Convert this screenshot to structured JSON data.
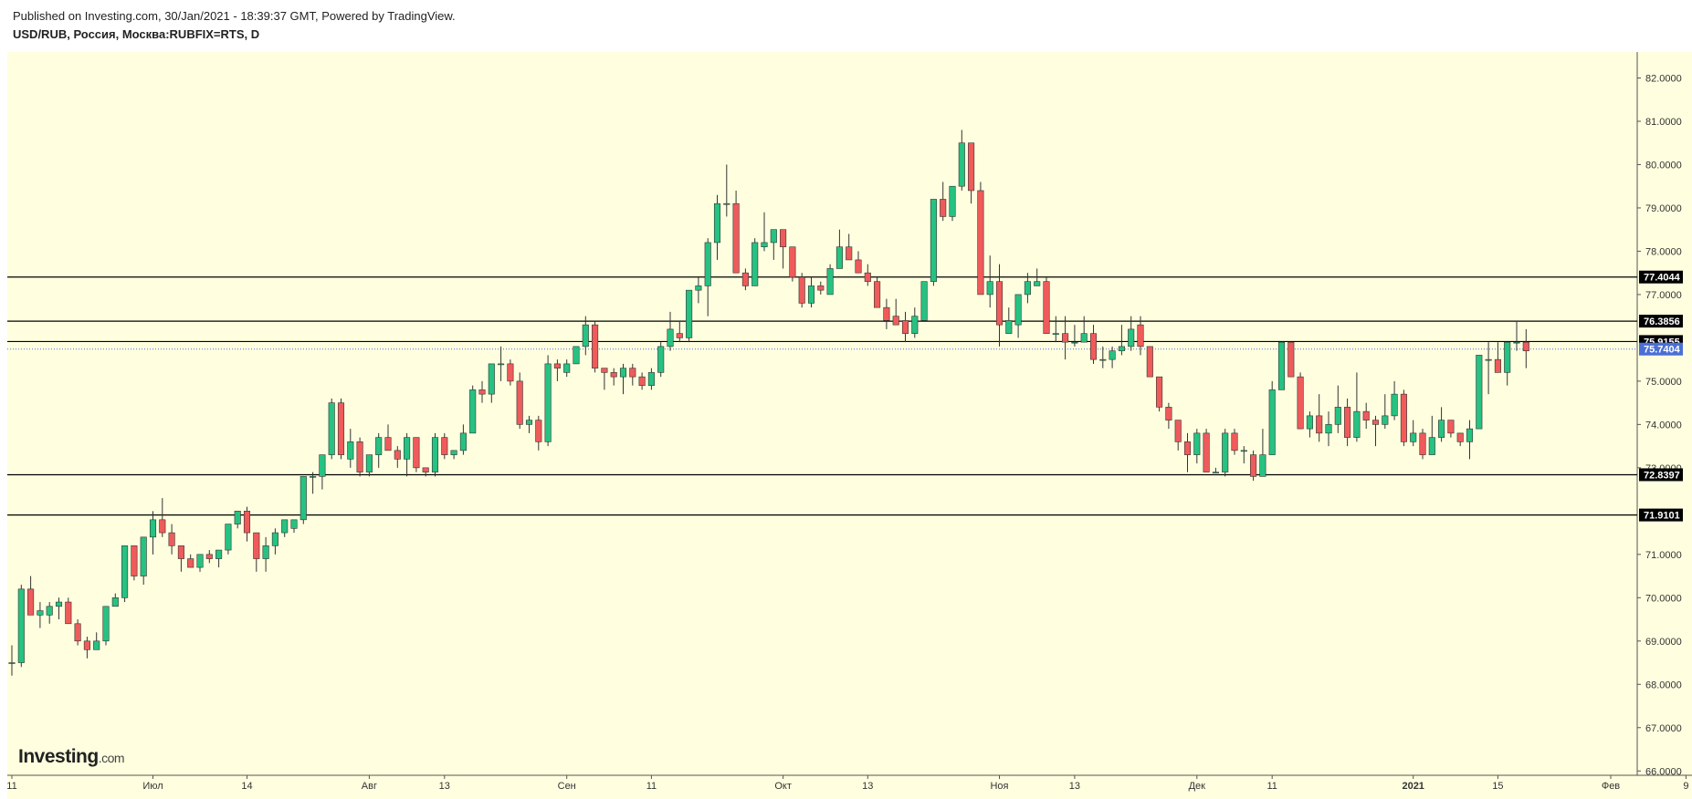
{
  "header": {
    "published": "Published on Investing.com, 30/Jan/2021 - 18:39:37 GMT, Powered by TradingView.",
    "symbol": "USD/RUB, Россия, Москва:RUBFIX=RTS, D"
  },
  "logo": {
    "main": "Investing",
    "suffix": ".com"
  },
  "colors": {
    "background": "#ffffe0",
    "up": "#26c281",
    "down": "#ef5b5b",
    "wick": "#333333",
    "hline": "#000000",
    "current": "#4a6fd6"
  },
  "chart_data": {
    "type": "candlestick",
    "ylim": [
      65.9,
      82.6
    ],
    "y_ticks": [
      "82.0000",
      "81.0000",
      "80.0000",
      "79.0000",
      "78.0000",
      "77.0000",
      "75.0000",
      "74.0000",
      "73.0000",
      "71.0000",
      "70.0000",
      "69.0000",
      "68.0000",
      "67.0000",
      "66.0000"
    ],
    "x_ticks": [
      {
        "i": 0,
        "label": "11"
      },
      {
        "i": 15,
        "label": "Июл"
      },
      {
        "i": 25,
        "label": "14"
      },
      {
        "i": 38,
        "label": "Авг"
      },
      {
        "i": 46,
        "label": "13"
      },
      {
        "i": 59,
        "label": "Сен"
      },
      {
        "i": 68,
        "label": "11"
      },
      {
        "i": 82,
        "label": "Окт"
      },
      {
        "i": 91,
        "label": "13"
      },
      {
        "i": 105,
        "label": "Ноя"
      },
      {
        "i": 113,
        "label": "13"
      },
      {
        "i": 126,
        "label": "Дек"
      },
      {
        "i": 134,
        "label": "11"
      },
      {
        "i": 149,
        "label": "2021"
      },
      {
        "i": 158,
        "label": "15"
      },
      {
        "i": 170,
        "label": "Фев"
      },
      {
        "i": 178,
        "label": "9"
      }
    ],
    "horizontal_lines": [
      77.4044,
      76.3856,
      75.9155,
      72.8397,
      71.9101
    ],
    "current_price": 75.7404,
    "price_labels": [
      "77.4044",
      "76.3856",
      "75.9155",
      "75.7404",
      "72.8397",
      "71.9101"
    ],
    "candles": [
      [
        68.5,
        68.9,
        68.2,
        68.5
      ],
      [
        68.5,
        70.3,
        68.4,
        70.2
      ],
      [
        70.2,
        70.5,
        69.6,
        69.6
      ],
      [
        69.6,
        69.9,
        69.3,
        69.7
      ],
      [
        69.6,
        69.9,
        69.4,
        69.8
      ],
      [
        69.8,
        70.0,
        69.5,
        69.9
      ],
      [
        69.9,
        70.0,
        69.4,
        69.4
      ],
      [
        69.4,
        69.5,
        68.9,
        69.0
      ],
      [
        69.0,
        69.1,
        68.6,
        68.8
      ],
      [
        68.8,
        69.2,
        68.8,
        69.0
      ],
      [
        69.0,
        69.8,
        68.9,
        69.8
      ],
      [
        69.8,
        70.1,
        69.8,
        70.0
      ],
      [
        70.0,
        71.2,
        69.9,
        71.2
      ],
      [
        71.2,
        71.2,
        70.4,
        70.5
      ],
      [
        70.5,
        71.4,
        70.3,
        71.4
      ],
      [
        71.4,
        72.0,
        71.0,
        71.8
      ],
      [
        71.8,
        72.3,
        71.4,
        71.5
      ],
      [
        71.5,
        71.7,
        71.0,
        71.2
      ],
      [
        71.2,
        71.2,
        70.6,
        70.9
      ],
      [
        70.9,
        71.0,
        70.7,
        70.7
      ],
      [
        70.7,
        71.0,
        70.6,
        71.0
      ],
      [
        71.0,
        71.1,
        70.8,
        70.9
      ],
      [
        70.9,
        71.1,
        70.7,
        71.1
      ],
      [
        71.1,
        71.7,
        71.0,
        71.7
      ],
      [
        71.7,
        72.0,
        71.6,
        72.0
      ],
      [
        72.0,
        72.1,
        71.3,
        71.5
      ],
      [
        71.5,
        71.5,
        70.6,
        70.9
      ],
      [
        70.9,
        71.4,
        70.6,
        71.2
      ],
      [
        71.2,
        71.6,
        71.0,
        71.5
      ],
      [
        71.5,
        71.8,
        71.4,
        71.8
      ],
      [
        71.6,
        71.8,
        71.5,
        71.8
      ],
      [
        71.8,
        72.8,
        71.7,
        72.8
      ],
      [
        72.8,
        72.9,
        72.4,
        72.8
      ],
      [
        72.8,
        73.3,
        72.5,
        73.3
      ],
      [
        73.3,
        74.6,
        73.2,
        74.5
      ],
      [
        74.5,
        74.6,
        73.2,
        73.3
      ],
      [
        73.2,
        73.9,
        73.0,
        73.6
      ],
      [
        73.6,
        73.7,
        72.8,
        72.9
      ],
      [
        72.9,
        73.3,
        72.8,
        73.3
      ],
      [
        73.3,
        73.8,
        73.0,
        73.7
      ],
      [
        73.7,
        74.0,
        73.4,
        73.4
      ],
      [
        73.4,
        73.5,
        73.0,
        73.2
      ],
      [
        73.2,
        73.8,
        72.8,
        73.7
      ],
      [
        73.7,
        73.7,
        72.9,
        73.0
      ],
      [
        73.0,
        73.0,
        72.8,
        72.9
      ],
      [
        72.9,
        73.8,
        72.8,
        73.7
      ],
      [
        73.7,
        73.8,
        73.2,
        73.3
      ],
      [
        73.3,
        73.4,
        73.2,
        73.4
      ],
      [
        73.4,
        74.0,
        73.3,
        73.8
      ],
      [
        73.8,
        74.9,
        73.8,
        74.8
      ],
      [
        74.8,
        75.0,
        74.5,
        74.7
      ],
      [
        74.7,
        75.4,
        74.5,
        75.4
      ],
      [
        75.4,
        75.8,
        75.0,
        75.4
      ],
      [
        75.4,
        75.5,
        74.9,
        75.0
      ],
      [
        75.0,
        75.2,
        73.9,
        74.0
      ],
      [
        74.0,
        74.2,
        73.8,
        74.1
      ],
      [
        74.1,
        74.2,
        73.4,
        73.6
      ],
      [
        73.6,
        75.6,
        73.5,
        75.4
      ],
      [
        75.4,
        75.5,
        75.0,
        75.3
      ],
      [
        75.2,
        75.5,
        75.1,
        75.4
      ],
      [
        75.4,
        75.8,
        75.4,
        75.8
      ],
      [
        75.8,
        76.5,
        75.6,
        76.3
      ],
      [
        76.3,
        76.4,
        75.2,
        75.3
      ],
      [
        75.3,
        75.3,
        74.8,
        75.2
      ],
      [
        75.2,
        75.3,
        74.9,
        75.1
      ],
      [
        75.1,
        75.4,
        74.7,
        75.3
      ],
      [
        75.3,
        75.4,
        74.9,
        75.1
      ],
      [
        75.1,
        75.2,
        74.8,
        74.9
      ],
      [
        74.9,
        75.3,
        74.8,
        75.2
      ],
      [
        75.2,
        75.9,
        75.1,
        75.8
      ],
      [
        75.8,
        76.6,
        75.7,
        76.2
      ],
      [
        76.1,
        76.4,
        75.9,
        76.0
      ],
      [
        76.0,
        77.1,
        75.9,
        77.1
      ],
      [
        77.1,
        77.4,
        76.8,
        77.2
      ],
      [
        77.2,
        78.3,
        76.5,
        78.2
      ],
      [
        78.2,
        79.3,
        77.8,
        79.1
      ],
      [
        79.1,
        80.0,
        78.8,
        79.1
      ],
      [
        79.1,
        79.4,
        77.5,
        77.5
      ],
      [
        77.5,
        77.6,
        77.1,
        77.2
      ],
      [
        77.2,
        78.3,
        77.2,
        78.2
      ],
      [
        78.1,
        78.9,
        78.0,
        78.2
      ],
      [
        78.2,
        78.5,
        77.8,
        78.5
      ],
      [
        78.5,
        78.5,
        77.6,
        78.1
      ],
      [
        78.1,
        78.1,
        77.3,
        77.4
      ],
      [
        77.4,
        77.5,
        76.7,
        76.8
      ],
      [
        76.8,
        77.4,
        76.7,
        77.2
      ],
      [
        77.2,
        77.3,
        77.0,
        77.1
      ],
      [
        77.0,
        77.7,
        77.0,
        77.6
      ],
      [
        77.6,
        78.5,
        77.6,
        78.1
      ],
      [
        78.1,
        78.4,
        77.8,
        77.8
      ],
      [
        77.8,
        78.0,
        77.5,
        77.5
      ],
      [
        77.5,
        77.7,
        77.2,
        77.3
      ],
      [
        77.3,
        77.4,
        76.7,
        76.7
      ],
      [
        76.7,
        76.9,
        76.2,
        76.4
      ],
      [
        76.5,
        76.9,
        76.3,
        76.3
      ],
      [
        76.4,
        76.6,
        75.9,
        76.1
      ],
      [
        76.1,
        76.7,
        76.0,
        76.5
      ],
      [
        76.4,
        77.3,
        76.4,
        77.3
      ],
      [
        77.3,
        79.2,
        77.2,
        79.2
      ],
      [
        79.2,
        79.6,
        78.7,
        78.8
      ],
      [
        78.8,
        79.5,
        78.7,
        79.5
      ],
      [
        79.5,
        80.8,
        79.4,
        80.5
      ],
      [
        80.5,
        80.5,
        79.1,
        79.4
      ],
      [
        79.4,
        79.6,
        77.0,
        77.0
      ],
      [
        77.0,
        77.9,
        76.7,
        77.3
      ],
      [
        77.3,
        77.7,
        75.8,
        76.3
      ],
      [
        76.1,
        76.7,
        76.1,
        76.4
      ],
      [
        76.3,
        77.0,
        76.0,
        77.0
      ],
      [
        77.0,
        77.5,
        76.8,
        77.3
      ],
      [
        77.2,
        77.6,
        77.2,
        77.3
      ],
      [
        77.3,
        77.4,
        76.1,
        76.1
      ],
      [
        76.1,
        76.5,
        75.9,
        76.1
      ],
      [
        76.1,
        76.5,
        75.5,
        75.9
      ],
      [
        75.9,
        76.3,
        75.8,
        75.9
      ],
      [
        75.9,
        76.5,
        75.9,
        76.1
      ],
      [
        76.1,
        76.3,
        75.4,
        75.5
      ],
      [
        75.5,
        75.8,
        75.3,
        75.5
      ],
      [
        75.5,
        75.8,
        75.3,
        75.7
      ],
      [
        75.7,
        76.3,
        75.6,
        75.8
      ],
      [
        75.8,
        76.5,
        75.7,
        76.2
      ],
      [
        76.3,
        76.5,
        75.6,
        75.8
      ],
      [
        75.8,
        75.8,
        75.1,
        75.1
      ],
      [
        75.1,
        75.1,
        74.3,
        74.4
      ],
      [
        74.4,
        74.5,
        73.9,
        74.1
      ],
      [
        74.1,
        74.1,
        73.4,
        73.6
      ],
      [
        73.6,
        73.8,
        72.9,
        73.3
      ],
      [
        73.3,
        73.9,
        73.1,
        73.8
      ],
      [
        73.8,
        73.9,
        72.9,
        72.9
      ],
      [
        72.9,
        73.0,
        72.9,
        72.9
      ],
      [
        72.9,
        73.9,
        72.8,
        73.8
      ],
      [
        73.8,
        73.9,
        73.3,
        73.4
      ],
      [
        73.4,
        73.5,
        73.1,
        73.4
      ],
      [
        73.3,
        73.4,
        72.7,
        72.8
      ],
      [
        72.8,
        73.9,
        72.8,
        73.3
      ],
      [
        73.3,
        75.0,
        73.3,
        74.8
      ],
      [
        74.8,
        75.9,
        74.8,
        75.9
      ],
      [
        75.9,
        75.9,
        75.1,
        75.1
      ],
      [
        75.1,
        75.2,
        73.9,
        73.9
      ],
      [
        73.9,
        74.3,
        73.7,
        74.2
      ],
      [
        74.2,
        74.7,
        73.6,
        73.8
      ],
      [
        73.8,
        74.3,
        73.5,
        74.0
      ],
      [
        74.0,
        74.9,
        73.8,
        74.4
      ],
      [
        74.4,
        74.6,
        73.5,
        73.7
      ],
      [
        73.7,
        75.2,
        73.6,
        74.3
      ],
      [
        74.3,
        74.5,
        73.9,
        74.1
      ],
      [
        74.1,
        74.2,
        73.5,
        74.0
      ],
      [
        74.0,
        74.7,
        73.9,
        74.2
      ],
      [
        74.2,
        75.0,
        74.1,
        74.7
      ],
      [
        74.7,
        74.8,
        73.5,
        73.6
      ],
      [
        73.6,
        74.1,
        73.5,
        73.8
      ],
      [
        73.8,
        73.9,
        73.2,
        73.3
      ],
      [
        73.3,
        74.2,
        73.3,
        73.7
      ],
      [
        73.7,
        74.4,
        73.6,
        74.1
      ],
      [
        74.1,
        74.1,
        73.7,
        73.8
      ],
      [
        73.8,
        73.8,
        73.5,
        73.6
      ],
      [
        73.6,
        74.1,
        73.2,
        73.9
      ],
      [
        73.9,
        75.6,
        73.9,
        75.6
      ],
      [
        75.5,
        75.9,
        74.7,
        75.5
      ],
      [
        75.5,
        75.9,
        75.2,
        75.2
      ],
      [
        75.2,
        75.8,
        74.9,
        75.9
      ],
      [
        75.9,
        76.4,
        75.7,
        75.9
      ],
      [
        75.9,
        76.2,
        75.3,
        75.7
      ]
    ]
  }
}
